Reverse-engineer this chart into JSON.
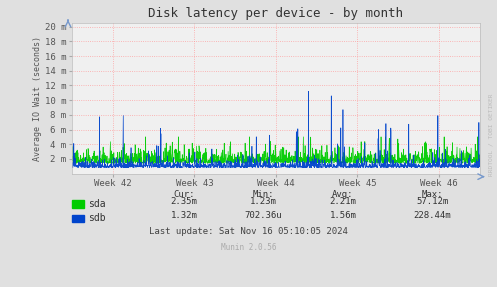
{
  "title": "Disk latency per device - by month",
  "ylabel": "Average IO Wait (seconds)",
  "background_color": "#e0e0e0",
  "plot_bg_color": "#f0f0f0",
  "grid_color": "#ff9999",
  "ytick_labels": [
    "2 m",
    "4 m",
    "6 m",
    "8 m",
    "10 m",
    "12 m",
    "14 m",
    "16 m",
    "18 m",
    "20 m"
  ],
  "ytick_values": [
    0.002,
    0.004,
    0.006,
    0.008,
    0.01,
    0.012,
    0.014,
    0.016,
    0.018,
    0.02
  ],
  "xtick_labels": [
    "Week 42",
    "Week 43",
    "Week 44",
    "Week 45",
    "Week 46"
  ],
  "legend_labels": [
    "sda",
    "sdb"
  ],
  "footer_text": "Last update: Sat Nov 16 05:10:05 2024",
  "munin_text": "Munin 2.0.56",
  "watermark": "RRDTOOL / TOBI OETIKER",
  "stats_headers": [
    "Cur:",
    "Min:",
    "Avg:",
    "Max:"
  ],
  "stats_sda": [
    "2.35m",
    "1.23m",
    "2.21m",
    "57.12m"
  ],
  "stats_sdb": [
    "1.32m",
    "702.36u",
    "1.56m",
    "228.44m"
  ],
  "sda_color": "#00cc00",
  "sdb_color": "#0044cc"
}
